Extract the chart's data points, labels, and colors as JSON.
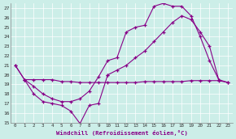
{
  "xlabel": "Windchill (Refroidissement éolien,°C)",
  "bg_color": "#cceee8",
  "grid_color": "#ffffff",
  "line_color": "#880088",
  "xlim": [
    -0.5,
    23.5
  ],
  "ylim": [
    15,
    27.5
  ],
  "yticks": [
    15,
    16,
    17,
    18,
    19,
    20,
    21,
    22,
    23,
    24,
    25,
    26,
    27
  ],
  "xticks": [
    0,
    1,
    2,
    3,
    4,
    5,
    6,
    7,
    8,
    9,
    10,
    11,
    12,
    13,
    14,
    15,
    16,
    17,
    18,
    19,
    20,
    21,
    22,
    23
  ],
  "series": [
    {
      "x": [
        0,
        1,
        2,
        3,
        4,
        5,
        6,
        7,
        8,
        9,
        10
      ],
      "y": [
        21.0,
        19.5,
        18.0,
        17.2,
        17.0,
        16.8,
        16.2,
        14.9,
        16.8,
        17.0,
        20.0
      ]
    },
    {
      "x": [
        0,
        1,
        2,
        3,
        4,
        5,
        6,
        7,
        8,
        9,
        10,
        11,
        12,
        13,
        14,
        15,
        16,
        17,
        18,
        19,
        20,
        21,
        22
      ],
      "y": [
        21.0,
        19.5,
        18.8,
        18.0,
        17.5,
        17.2,
        17.2,
        17.5,
        18.3,
        19.8,
        21.5,
        21.8,
        24.5,
        25.0,
        25.2,
        27.2,
        27.5,
        27.2,
        27.2,
        26.2,
        24.0,
        21.5,
        19.5
      ]
    },
    {
      "x": [
        1,
        2,
        3,
        4,
        5,
        6,
        7,
        8,
        9,
        10,
        11,
        12,
        13,
        14,
        15,
        16,
        17,
        18,
        19,
        20,
        21,
        22,
        23
      ],
      "y": [
        19.5,
        19.5,
        19.5,
        19.5,
        19.3,
        19.3,
        19.2,
        19.2,
        19.2,
        19.2,
        19.2,
        19.2,
        19.2,
        19.3,
        19.3,
        19.3,
        19.3,
        19.3,
        19.4,
        19.4,
        19.4,
        19.4,
        19.2
      ]
    },
    {
      "x": [
        10,
        11,
        12,
        13,
        14,
        15,
        16,
        17,
        18,
        19,
        20,
        21,
        22,
        23
      ],
      "y": [
        20.0,
        20.5,
        21.0,
        21.8,
        22.5,
        23.5,
        24.5,
        25.5,
        26.2,
        25.8,
        24.5,
        23.0,
        19.5,
        19.2
      ]
    }
  ]
}
